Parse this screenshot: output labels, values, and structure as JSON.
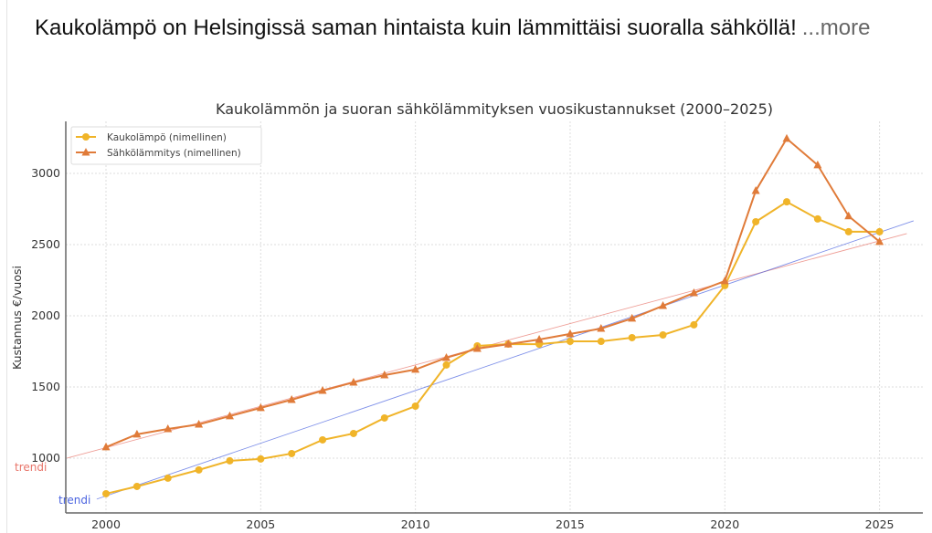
{
  "post": {
    "text": "Kaukolämpö on Helsingissä saman hintaista kuin lämmittäisi suoralla sähköllä!",
    "more_label": "...more"
  },
  "chart_data": {
    "type": "line",
    "title": "Kaukolämmön ja suoran sähkölämmityksen vuosikustannukset (2000–2025)",
    "xlabel": "",
    "ylabel": "Kustannus €/vuosi",
    "xlim": [
      1998.7,
      2026.4
    ],
    "ylim": [
      615,
      3365
    ],
    "xticks": [
      2000,
      2005,
      2010,
      2015,
      2020,
      2025
    ],
    "yticks": [
      1000,
      1500,
      2000,
      2500,
      3000
    ],
    "grid": true,
    "legend": "top-left",
    "x": [
      2000,
      2001,
      2002,
      2003,
      2004,
      2005,
      2006,
      2007,
      2008,
      2009,
      2010,
      2011,
      2012,
      2013,
      2014,
      2015,
      2016,
      2017,
      2018,
      2019,
      2020,
      2021,
      2022,
      2023,
      2024,
      2025
    ],
    "series": [
      {
        "name": "Kaukolämpö (nimellinen)",
        "color": "#f0b429",
        "marker": "circle",
        "values": [
          750,
          801,
          859,
          917,
          981,
          994,
          1032,
          1128,
          1173,
          1282,
          1365,
          1654,
          1788,
          1801,
          1800,
          1820,
          1820,
          1846,
          1865,
          1936,
          2212,
          2660,
          2800,
          2680,
          2590,
          2590
        ]
      },
      {
        "name": "Sähkölämmitys (nimellinen)",
        "color": "#e07b39",
        "marker": "triangle",
        "values": [
          1077,
          1167,
          1205,
          1237,
          1295,
          1353,
          1410,
          1474,
          1532,
          1583,
          1622,
          1705,
          1769,
          1800,
          1833,
          1872,
          1910,
          1981,
          2070,
          2160,
          2244,
          2878,
          3244,
          3058,
          2700,
          2520
        ]
      }
    ],
    "trendlines": [
      {
        "label": "trendi",
        "color": "#e8756a",
        "from": [
          1998.74,
          1000
        ],
        "to": [
          2025.88,
          2577
        ]
      },
      {
        "label": "trendi",
        "color": "#4a63e0",
        "from": [
          1999.7,
          712
        ],
        "to": [
          2026.1,
          2667
        ]
      }
    ]
  }
}
